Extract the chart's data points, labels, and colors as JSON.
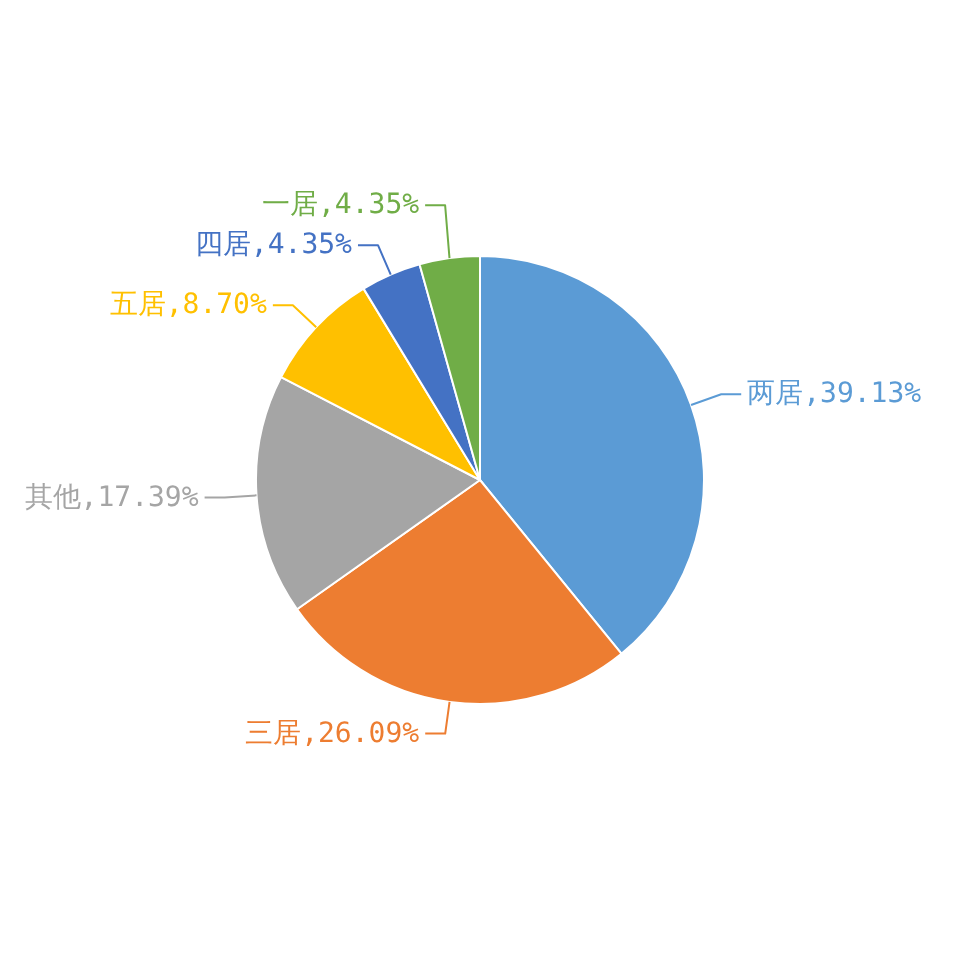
{
  "chart_data": {
    "type": "pie",
    "categories": [
      "两居",
      "三居",
      "其他",
      "五居",
      "四居",
      "一居"
    ],
    "values": [
      39.13,
      26.09,
      17.39,
      8.7,
      4.35,
      4.35
    ],
    "colors": [
      "#5b9bd5",
      "#ed7d31",
      "#a5a5a5",
      "#ffc000",
      "#4472c4",
      "#70ad47"
    ],
    "value_labels": [
      "39.13%",
      "26.09%",
      "17.39%",
      "8.70%",
      "4.35%",
      "4.35%"
    ],
    "legend": false
  }
}
